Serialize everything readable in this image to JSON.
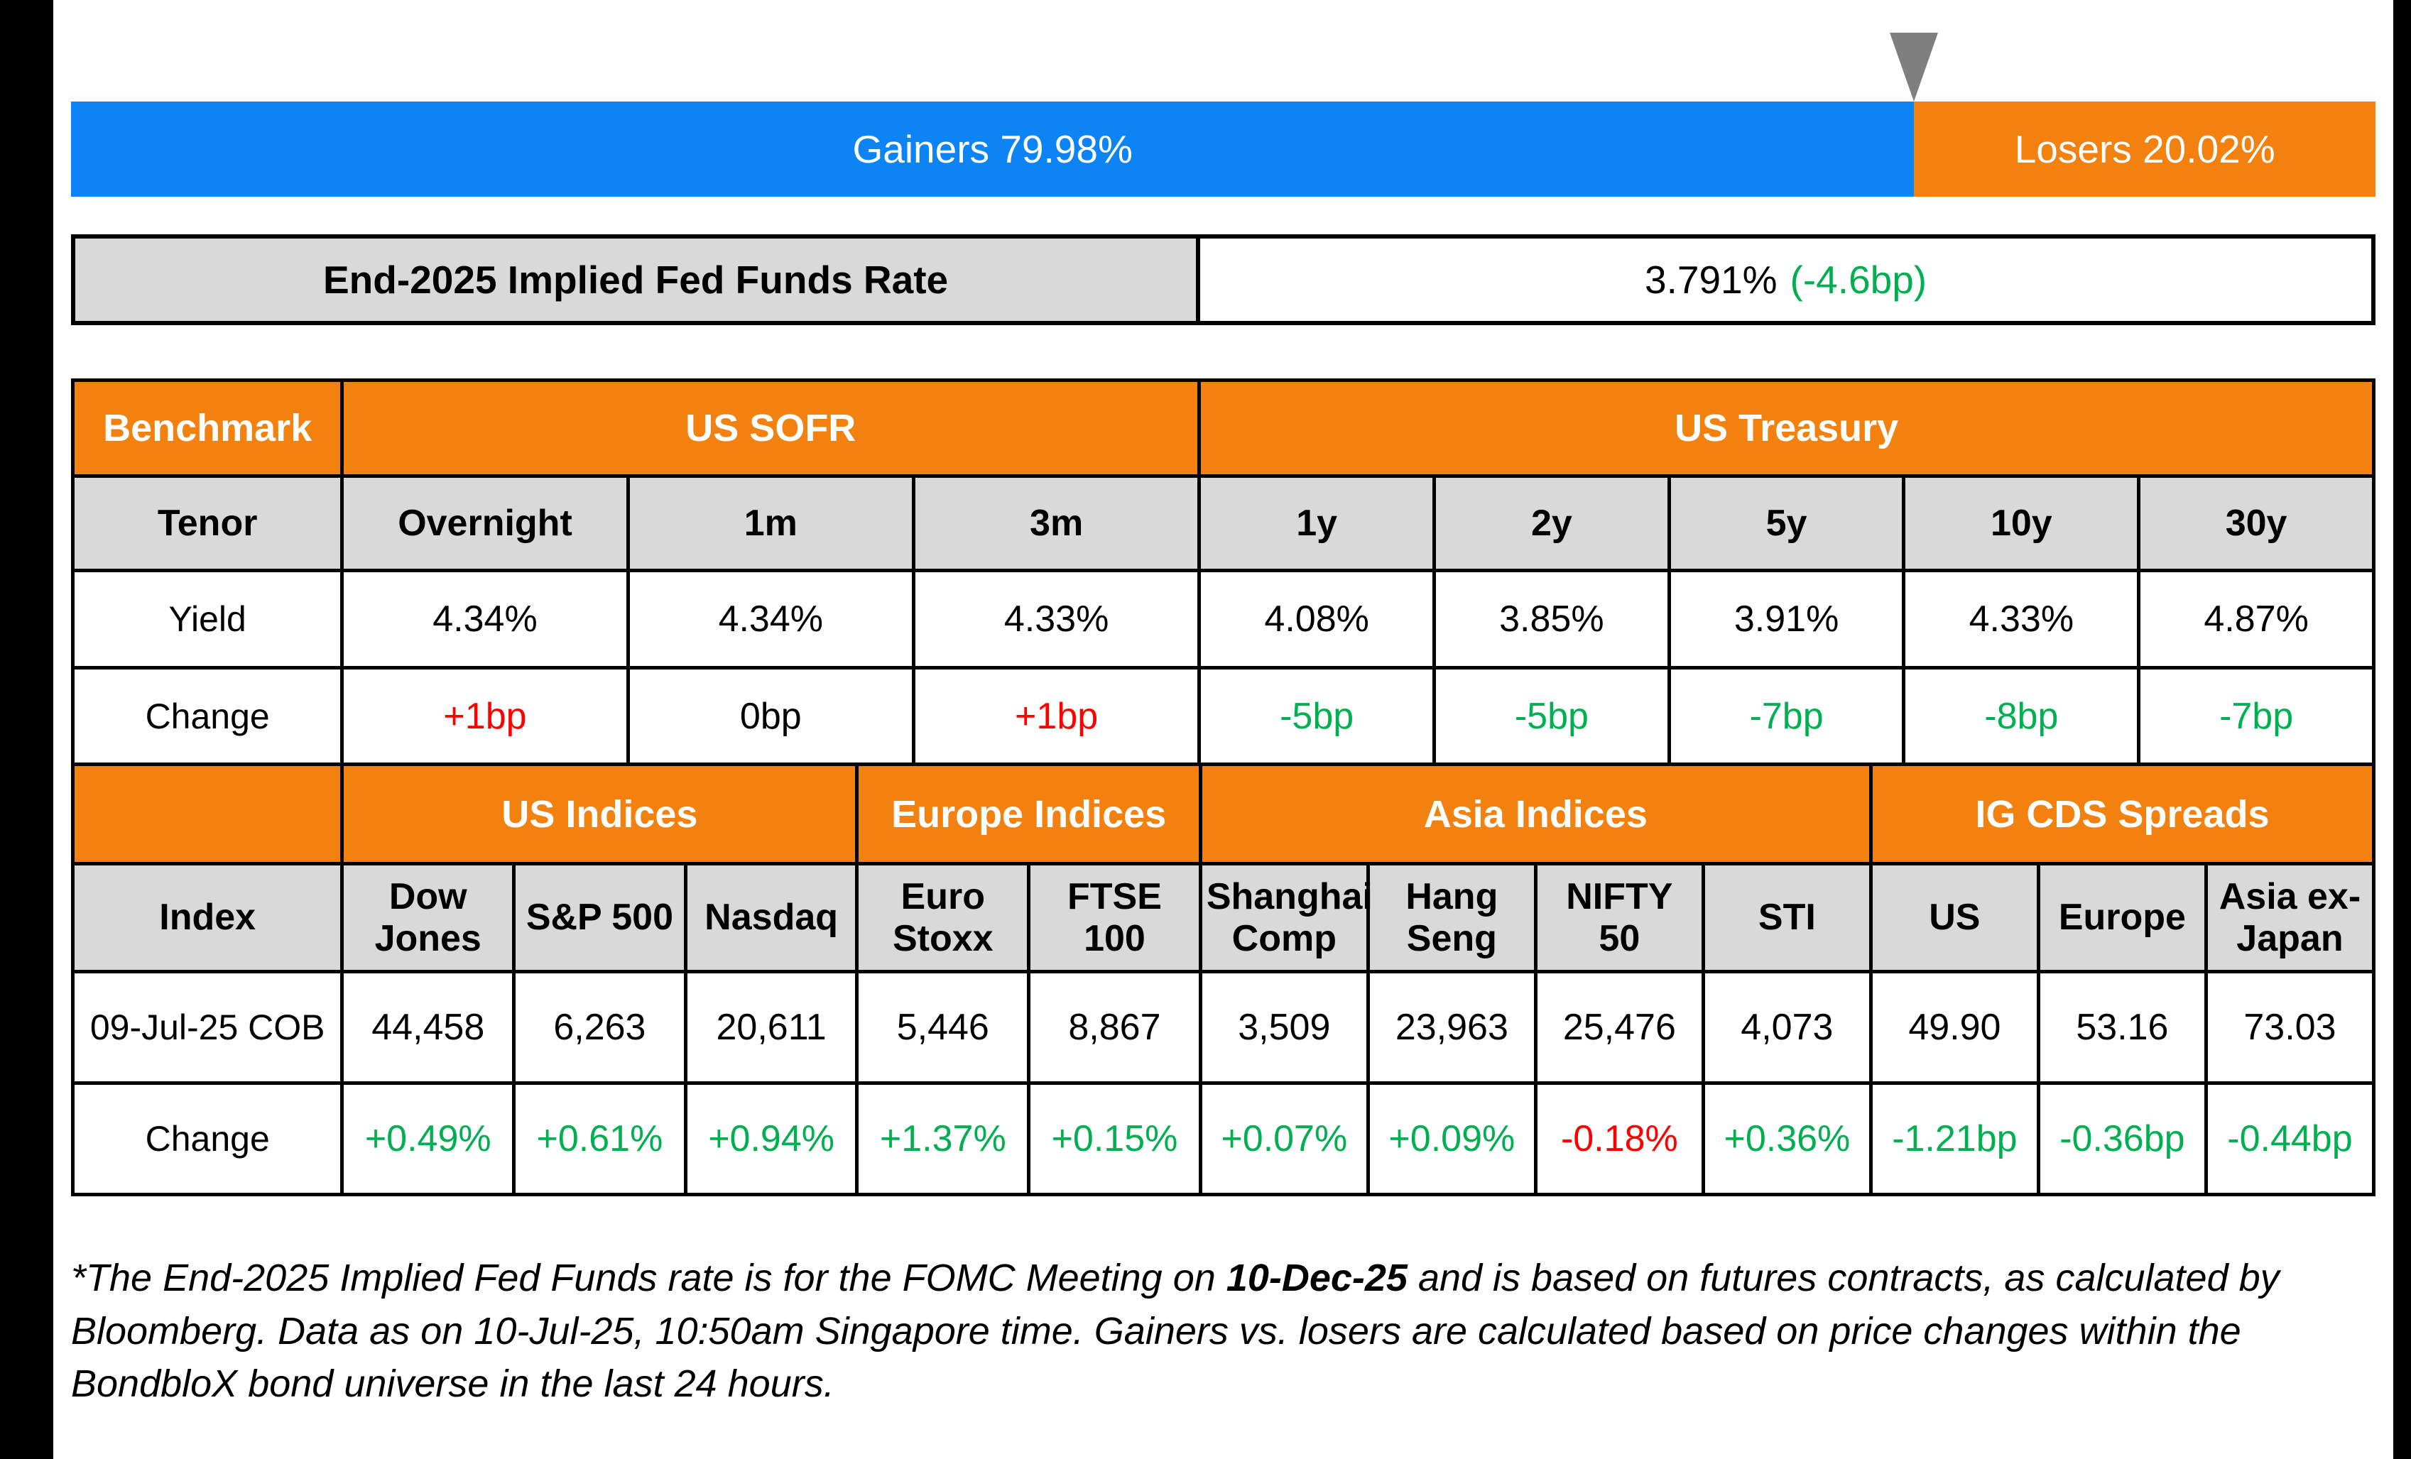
{
  "palette": {
    "gainers_blue": "#0C84F5",
    "losers_orange": "#F28110",
    "header_orange": "#F28110",
    "header_gray": "#D9D9D9",
    "positive_green": "#00B050",
    "negative_red": "#FF0000",
    "marker_gray": "#7F7F7F",
    "border_black": "#000000"
  },
  "top_bar": {
    "gainers_label": "Gainers 79.98%",
    "gainers_pct": 79.98,
    "losers_label": "Losers 20.02%",
    "losers_pct": 20.02,
    "marker_pct": 79.98
  },
  "fed_funds": {
    "label": "End-2025 Implied Fed Funds Rate",
    "value": "3.791%",
    "change": "(-4.6bp)"
  },
  "benchmark": {
    "corner": "Benchmark",
    "group_sofr": "US SOFR",
    "group_treasury": "US Treasury",
    "tenor_label": "Tenor",
    "tenors": [
      "Overnight",
      "1m",
      "3m",
      "1y",
      "2y",
      "5y",
      "10y",
      "30y"
    ],
    "yield_label": "Yield",
    "yields": [
      "4.34%",
      "4.34%",
      "4.33%",
      "4.08%",
      "3.85%",
      "3.91%",
      "4.33%",
      "4.87%"
    ],
    "change_label": "Change",
    "changes": [
      {
        "text": "+1bp",
        "tone": "red"
      },
      {
        "text": "0bp",
        "tone": "black"
      },
      {
        "text": "+1bp",
        "tone": "red"
      },
      {
        "text": "-5bp",
        "tone": "green"
      },
      {
        "text": "-5bp",
        "tone": "green"
      },
      {
        "text": "-7bp",
        "tone": "green"
      },
      {
        "text": "-8bp",
        "tone": "green"
      },
      {
        "text": "-7bp",
        "tone": "green"
      }
    ]
  },
  "indices": {
    "group_us": "US Indices",
    "group_europe": "Europe Indices",
    "group_asia": "Asia Indices",
    "group_cds": "IG CDS Spreads",
    "index_label": "Index",
    "names": [
      "Dow\nJones",
      "S&P 500",
      "Nasdaq",
      "Euro\nStoxx",
      "FTSE 100",
      "Shanghai\nComp",
      "Hang\nSeng",
      "NIFTY 50",
      "STI",
      "US",
      "Europe",
      "Asia ex-\nJapan"
    ],
    "cob_label": "09-Jul-25 COB",
    "values": [
      "44,458",
      "6,263",
      "20,611",
      "5,446",
      "8,867",
      "3,509",
      "23,963",
      "25,476",
      "4,073",
      "49.90",
      "53.16",
      "73.03"
    ],
    "change_label": "Change",
    "changes": [
      {
        "text": "+0.49%",
        "tone": "green"
      },
      {
        "text": "+0.61%",
        "tone": "green"
      },
      {
        "text": "+0.94%",
        "tone": "green"
      },
      {
        "text": "+1.37%",
        "tone": "green"
      },
      {
        "text": "+0.15%",
        "tone": "green"
      },
      {
        "text": "+0.07%",
        "tone": "green"
      },
      {
        "text": "+0.09%",
        "tone": "green"
      },
      {
        "text": "-0.18%",
        "tone": "red"
      },
      {
        "text": "+0.36%",
        "tone": "green"
      },
      {
        "text": "-1.21bp",
        "tone": "green"
      },
      {
        "text": "-0.36bp",
        "tone": "green"
      },
      {
        "text": "-0.44bp",
        "tone": "green"
      }
    ]
  },
  "footnote": {
    "part1": "*The End-2025 Implied Fed Funds rate is for the FOMC Meeting on ",
    "bold": "10-Dec-25",
    "part2": " and is based on futures contracts, as calculated by Bloomberg. Data as on 10-Jul-25, 10:50am Singapore time. Gainers vs. losers are calculated based on price changes within the BondbloX bond universe in the last 24 hours."
  },
  "chart_data": [
    {
      "type": "bar",
      "title": "Gainers vs Losers (BondbloX bond universe, last 24 hours)",
      "categories": [
        "Gainers",
        "Losers"
      ],
      "values": [
        79.98,
        20.02
      ],
      "unit": "%",
      "layout": "horizontal-stacked-100pct",
      "colors": [
        "#0C84F5",
        "#F28110"
      ],
      "marker": "gray triangle pointing at 79.98% split"
    },
    {
      "type": "table",
      "title": "End-2025 Implied Fed Funds Rate",
      "value_pct": 3.791,
      "change_bp": -4.6
    },
    {
      "type": "table",
      "title": "Benchmark",
      "groups": [
        {
          "label": "US SOFR",
          "tenors": [
            "Overnight",
            "1m",
            "3m"
          ]
        },
        {
          "label": "US Treasury",
          "tenors": [
            "1y",
            "2y",
            "5y",
            "10y",
            "30y"
          ]
        }
      ],
      "tenors": [
        "Overnight",
        "1m",
        "3m",
        "1y",
        "2y",
        "5y",
        "10y",
        "30y"
      ],
      "yield_pct": [
        4.34,
        4.34,
        4.33,
        4.08,
        3.85,
        3.91,
        4.33,
        4.87
      ],
      "change_bp": [
        1,
        0,
        1,
        -5,
        -5,
        -7,
        -8,
        -7
      ]
    },
    {
      "type": "table",
      "title": "Indices and IG CDS Spreads",
      "as_of": "09-Jul-25 COB",
      "groups": [
        {
          "label": "US Indices",
          "members": [
            "Dow Jones",
            "S&P 500",
            "Nasdaq"
          ]
        },
        {
          "label": "Europe Indices",
          "members": [
            "Euro Stoxx",
            "FTSE 100"
          ]
        },
        {
          "label": "Asia Indices",
          "members": [
            "Shanghai Comp",
            "Hang Seng",
            "NIFTY 50",
            "STI"
          ]
        },
        {
          "label": "IG CDS Spreads",
          "members": [
            "US",
            "Europe",
            "Asia ex-Japan"
          ]
        }
      ],
      "names": [
        "Dow Jones",
        "S&P 500",
        "Nasdaq",
        "Euro Stoxx",
        "FTSE 100",
        "Shanghai Comp",
        "Hang Seng",
        "NIFTY 50",
        "STI",
        "US",
        "Europe",
        "Asia ex-Japan"
      ],
      "close": [
        44458,
        6263,
        20611,
        5446,
        8867,
        3509,
        23963,
        25476,
        4073,
        49.9,
        53.16,
        73.03
      ],
      "change": [
        "+0.49%",
        "+0.61%",
        "+0.94%",
        "+1.37%",
        "+0.15%",
        "+0.07%",
        "+0.09%",
        "-0.18%",
        "+0.36%",
        "-1.21bp",
        "-0.36bp",
        "-0.44bp"
      ]
    }
  ]
}
